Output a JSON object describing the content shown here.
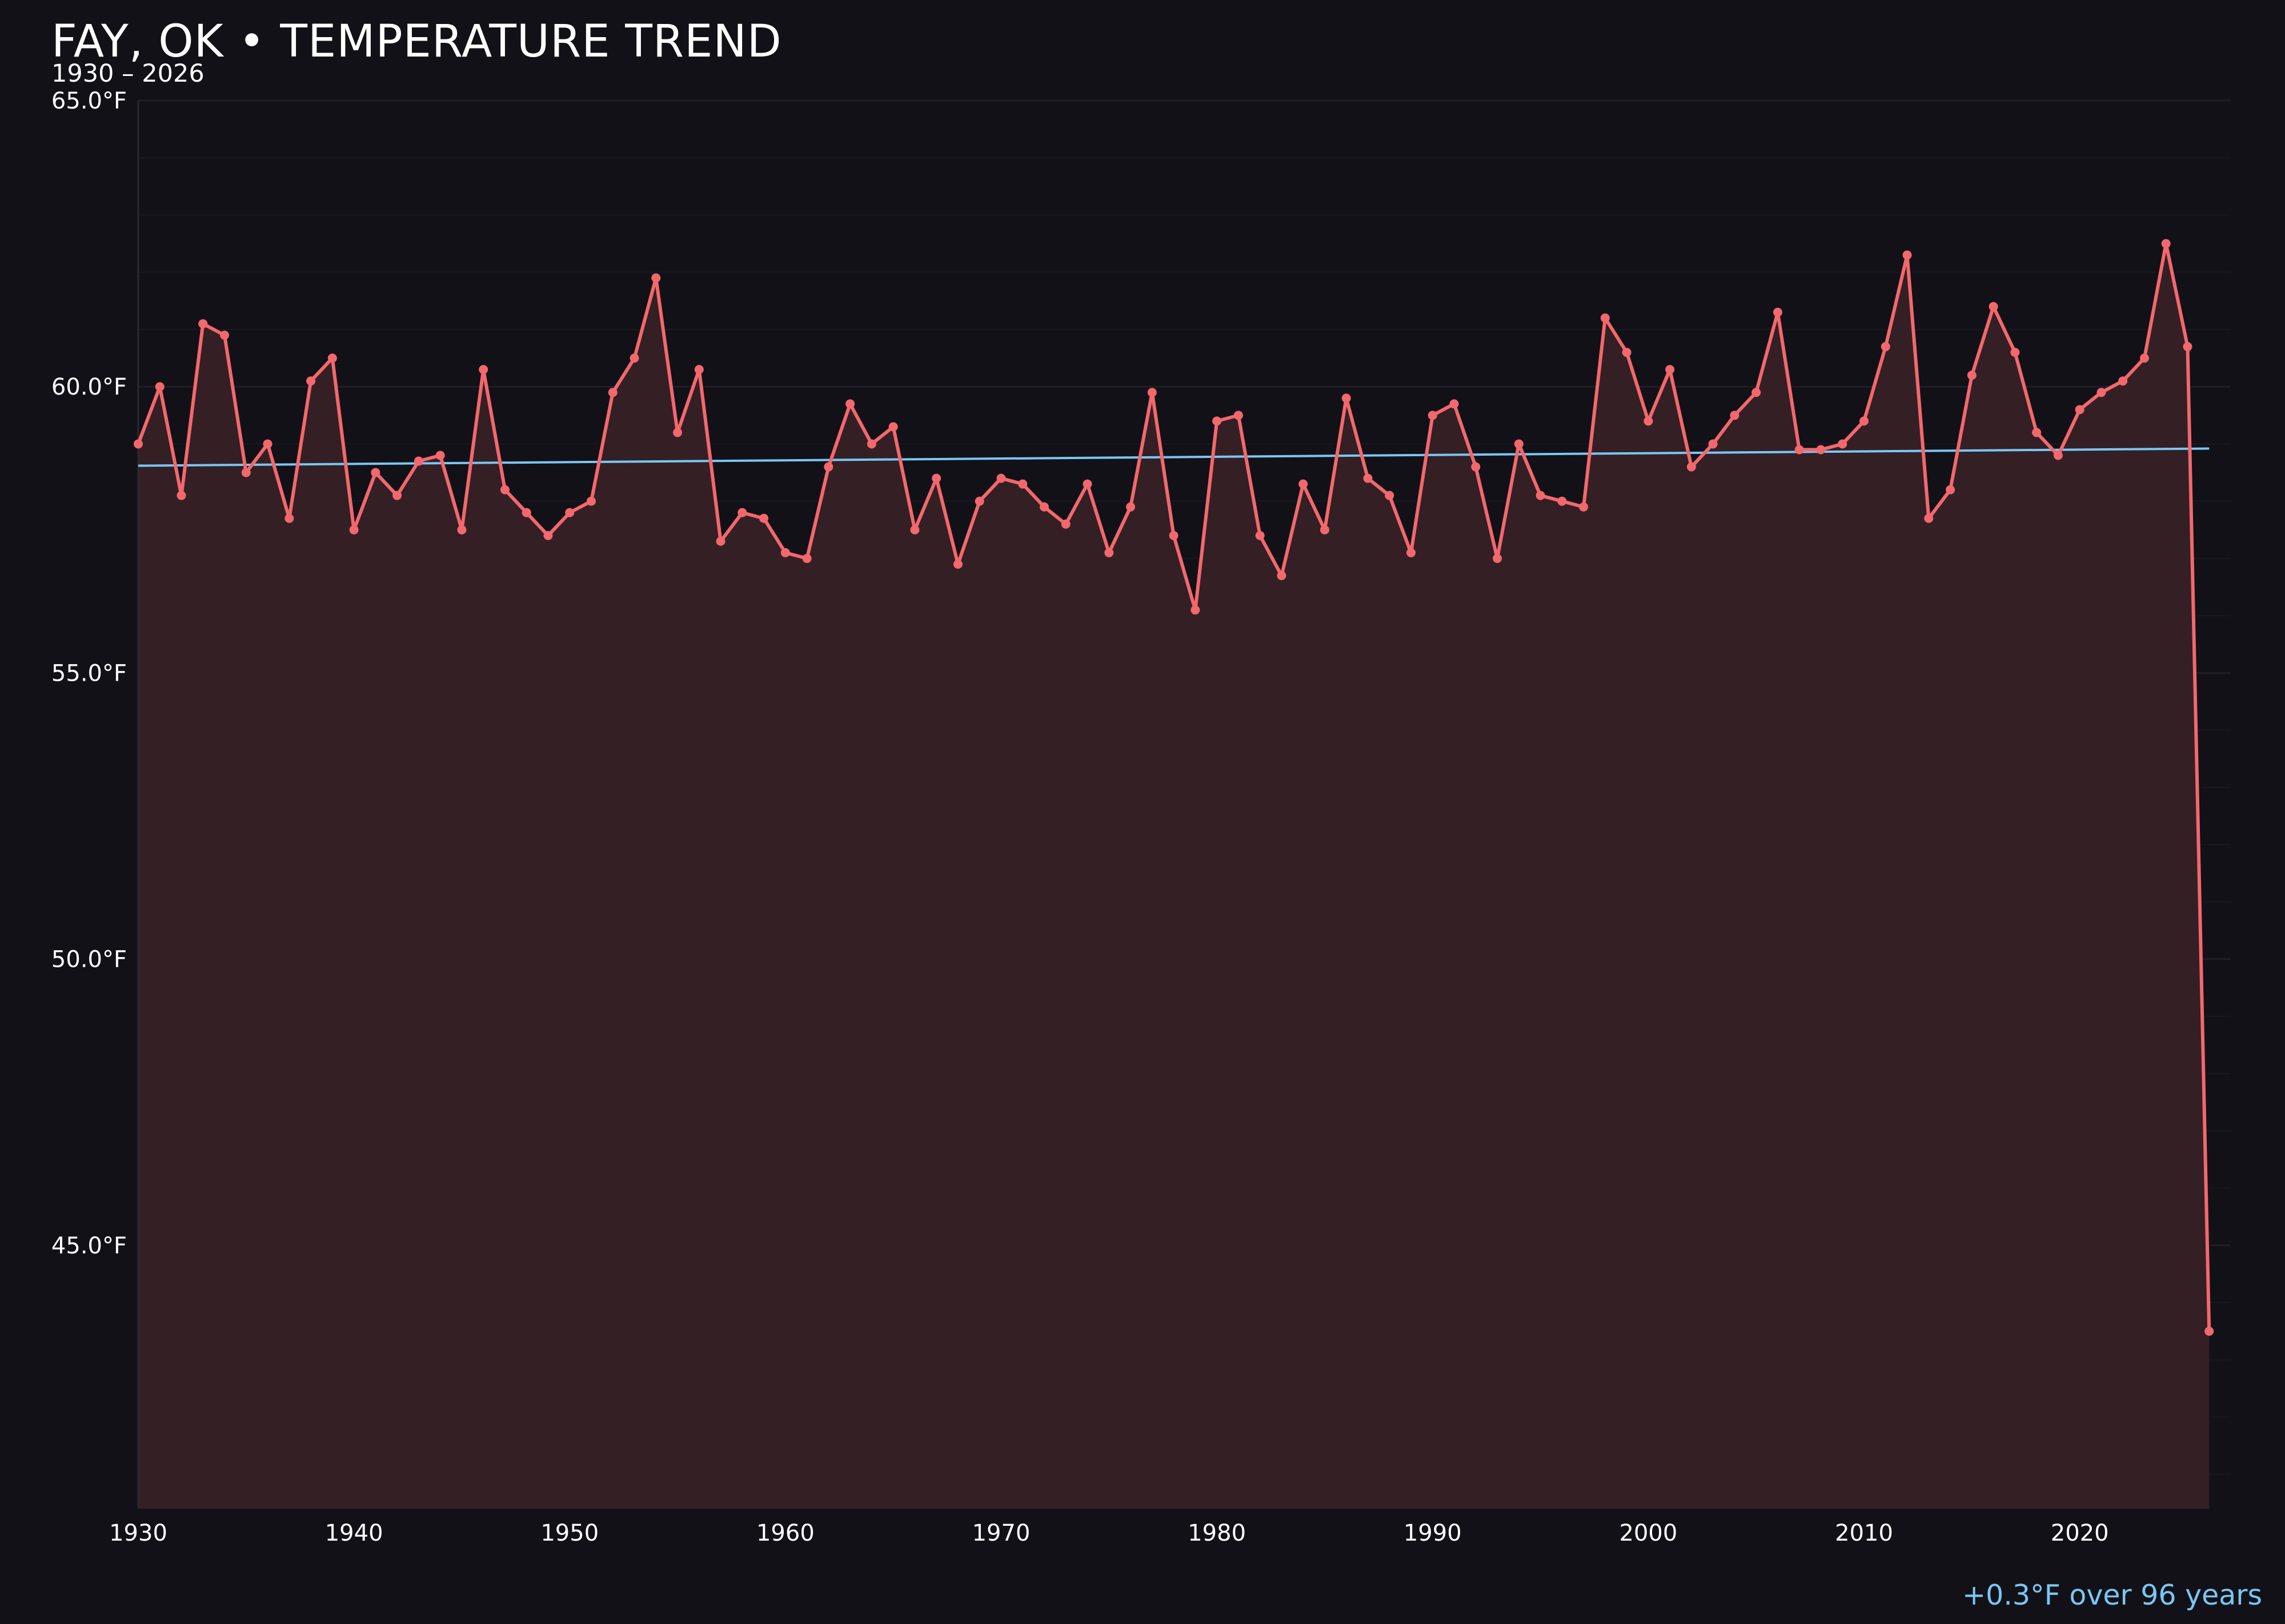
{
  "colors": {
    "background": "#121118",
    "series_line": "#f2686c",
    "area_fill": "#341f25",
    "trend_line": "#7ac7f2",
    "grid": "#1f1e26",
    "text": "#ffffff",
    "annotation": "#7ac7f2"
  },
  "chart_data": {
    "type": "area",
    "title": "FAY, OK • TEMPERATURE TREND",
    "subtitle": "1930 – 2026",
    "annotation": "+0.3°F over 96 years",
    "xlabel": "",
    "ylabel": "",
    "xlim": [
      1930,
      2027
    ],
    "ylim": [
      40.4,
      65.0
    ],
    "grid": true,
    "x_ticks": [
      1930,
      1940,
      1950,
      1960,
      1970,
      1980,
      1990,
      2000,
      2010,
      2020
    ],
    "x_tick_labels": [
      "1930",
      "1940",
      "1950",
      "1960",
      "1970",
      "1980",
      "1990",
      "2000",
      "2010",
      "2020"
    ],
    "y_ticks": [
      45.0,
      50.0,
      55.0,
      60.0,
      65.0
    ],
    "y_tick_labels": [
      "45.0°F",
      "50.0°F",
      "55.0°F",
      "60.0°F",
      "65.0°F"
    ],
    "series": [
      {
        "x": [
          1930,
          1931,
          1932,
          1933,
          1934,
          1935,
          1936,
          1937,
          1938,
          1939,
          1940,
          1941,
          1942,
          1943,
          1944,
          1945,
          1946,
          1947,
          1948,
          1949,
          1950,
          1951,
          1952,
          1953,
          1954,
          1955,
          1956,
          1957,
          1958,
          1959,
          1960,
          1961,
          1962,
          1963,
          1964,
          1965,
          1966,
          1967,
          1968,
          1969,
          1970,
          1971,
          1972,
          1973,
          1974,
          1975,
          1976,
          1977,
          1978,
          1979,
          1980,
          1981,
          1982,
          1983,
          1984,
          1985,
          1986,
          1987,
          1988,
          1989,
          1990,
          1991,
          1992,
          1993,
          1994,
          1995,
          1996,
          1997,
          1998,
          1999,
          2000,
          2001,
          2002,
          2003,
          2004,
          2005,
          2006,
          2007,
          2008,
          2009,
          2010,
          2011,
          2012,
          2013,
          2014,
          2015,
          2016,
          2017,
          2018,
          2019,
          2020,
          2021,
          2022,
          2023,
          2024,
          2025,
          2026
        ],
        "values": [
          59.0,
          60.0,
          58.1,
          61.1,
          60.9,
          58.5,
          59.0,
          57.7,
          60.1,
          60.5,
          57.5,
          58.5,
          58.1,
          58.7,
          58.8,
          57.5,
          60.3,
          58.2,
          57.8,
          57.4,
          57.8,
          58.0,
          59.9,
          60.5,
          61.9,
          59.2,
          60.3,
          57.3,
          57.8,
          57.7,
          57.1,
          57.0,
          58.6,
          59.7,
          59.0,
          59.3,
          57.5,
          58.4,
          56.9,
          58.0,
          58.4,
          58.3,
          57.9,
          57.6,
          58.3,
          57.1,
          57.9,
          59.9,
          57.4,
          56.1,
          59.4,
          59.5,
          57.4,
          56.7,
          58.3,
          57.5,
          59.8,
          58.4,
          58.1,
          57.1,
          59.5,
          59.7,
          58.6,
          57.0,
          59.0,
          58.1,
          58.0,
          57.9,
          61.2,
          60.6,
          59.4,
          60.3,
          58.6,
          59.0,
          59.5,
          59.9,
          61.3,
          58.9,
          58.9,
          59.0,
          59.4,
          60.7,
          62.3,
          57.7,
          58.2,
          60.2,
          61.4,
          60.6,
          59.2,
          58.8,
          59.6,
          59.9,
          60.1,
          60.5,
          62.5,
          60.7,
          43.5
        ]
      }
    ],
    "trend": {
      "x": [
        1930,
        2026
      ],
      "y": [
        58.62,
        58.92
      ]
    }
  }
}
